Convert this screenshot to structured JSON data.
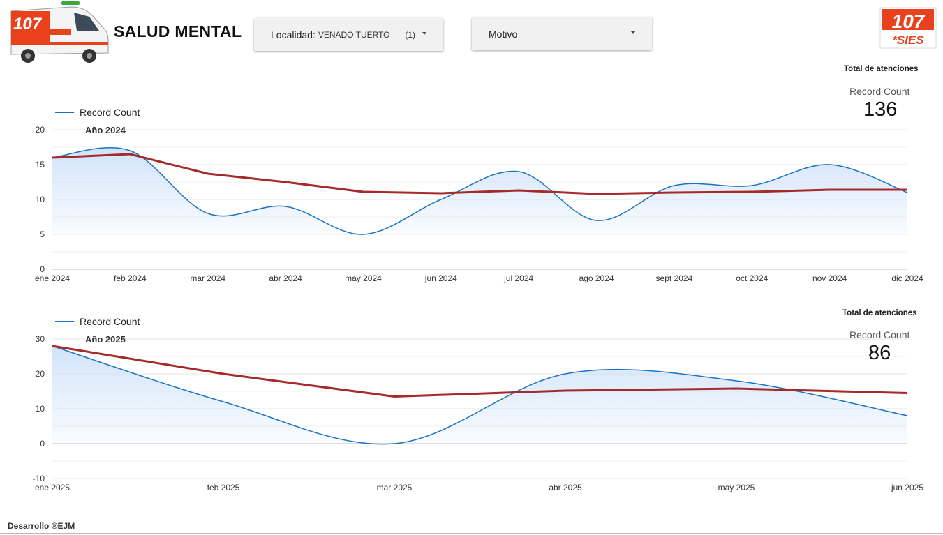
{
  "header": {
    "title": "SALUD MENTAL",
    "ambulance_text": "107",
    "logo": {
      "number": "107",
      "word": "*SIES",
      "color": "#e8411c"
    }
  },
  "filters": {
    "localidad": {
      "label": "Localidad:",
      "value": "VENADO TUERTO",
      "count": "(1)"
    },
    "motivo": {
      "label": "Motivo"
    }
  },
  "colors": {
    "series": "#1a73c8",
    "trend": "#a52a2a",
    "area": "#cfe2fa"
  },
  "scorecards": [
    {
      "header": "Total de atenciones",
      "label": "Record Count",
      "value": "136"
    },
    {
      "header": "Total de atenciones",
      "label": "Record Count",
      "value": "86"
    }
  ],
  "chart_data": [
    {
      "type": "area",
      "legend": "Record Count",
      "title": "Año 2024",
      "categories": [
        "ene 2024",
        "feb 2024",
        "mar 2024",
        "abr 2024",
        "may 2024",
        "jun 2024",
        "jul 2024",
        "ago 2024",
        "sept 2024",
        "oct 2024",
        "nov 2024",
        "dic 2024"
      ],
      "series": [
        {
          "name": "Record Count",
          "values": [
            16,
            17,
            8,
            9,
            5,
            10,
            14,
            7,
            12,
            12,
            15,
            11
          ]
        }
      ],
      "trend": [
        16,
        16.5,
        13.7,
        12.5,
        11.1,
        10.9,
        11.3,
        10.8,
        11.0,
        11.1,
        11.4,
        11.4
      ],
      "yticks": [
        0,
        5,
        10,
        15,
        20
      ],
      "ylim": [
        0,
        20
      ],
      "grid": true
    },
    {
      "type": "area",
      "legend": "Record Count",
      "title": "Año 2025",
      "categories": [
        "ene 2025",
        "feb 2025",
        "mar 2025",
        "abr 2025",
        "may 2025",
        "jun 2025"
      ],
      "series": [
        {
          "name": "Record Count",
          "values": [
            28,
            12,
            0,
            20,
            18,
            8
          ]
        }
      ],
      "trend": [
        28,
        20,
        13.5,
        15.2,
        15.8,
        14.5
      ],
      "yticks": [
        -10,
        0,
        10,
        20,
        30
      ],
      "ylim": [
        -10,
        30
      ],
      "grid": true
    }
  ],
  "footer": "Desarrollo  ®EJM"
}
